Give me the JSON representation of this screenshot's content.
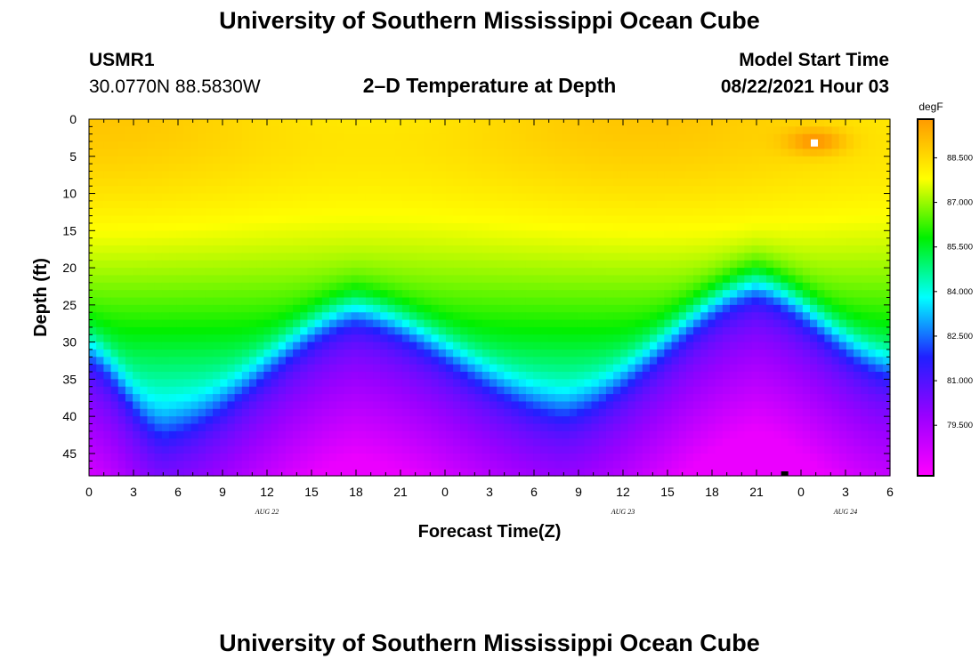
{
  "header": {
    "title": "University of Southern Mississippi Ocean Cube",
    "station": "USMR1",
    "coordinates": "30.0770N  88.5830W",
    "subtitle": "2–D Temperature at Depth",
    "model_start_label": "Model Start Time",
    "model_start_time": "08/22/2021 Hour 03"
  },
  "footer": {
    "title": "University of Southern Mississippi Ocean Cube"
  },
  "chart_data": {
    "type": "heatmap",
    "title": "2–D Temperature at Depth",
    "xlabel": "Forecast Time(Z)",
    "ylabel": "Depth (ft)",
    "x_range": [
      0,
      54
    ],
    "ylim": [
      0,
      48
    ],
    "x_ticks": [
      "0",
      "3",
      "6",
      "9",
      "12",
      "15",
      "18",
      "21",
      "0",
      "3",
      "6",
      "9",
      "12",
      "15",
      "18",
      "21",
      "0",
      "3",
      "6"
    ],
    "x_tick_hours": [
      0,
      3,
      6,
      9,
      12,
      15,
      18,
      21,
      24,
      27,
      30,
      33,
      36,
      39,
      42,
      45,
      48,
      51,
      54
    ],
    "y_ticks": [
      0,
      5,
      10,
      15,
      20,
      25,
      30,
      35,
      40,
      45
    ],
    "date_labels": [
      {
        "text": "AUG  22",
        "hour": 12
      },
      {
        "text": "AUG  23",
        "hour": 36
      },
      {
        "text": "AUG  24",
        "hour": 51
      }
    ],
    "colorbar": {
      "unit": "degF",
      "min": 77.8,
      "max": 89.8,
      "labels": [
        "88.500",
        "87.000",
        "85.500",
        "84.000",
        "82.500",
        "81.000",
        "79.500"
      ],
      "label_values": [
        88.5,
        87.0,
        85.5,
        84.0,
        82.5,
        81.0,
        79.5
      ],
      "colors": [
        "#ff00ff",
        "#9a00ff",
        "#2020ff",
        "#00ffff",
        "#00f000",
        "#ffff00",
        "#ff9a00"
      ]
    },
    "thermocline_depth_ft": [
      {
        "hour": 0,
        "depth": 31
      },
      {
        "hour": 5,
        "depth": 42
      },
      {
        "hour": 18,
        "depth": 25.5
      },
      {
        "hour": 32,
        "depth": 39
      },
      {
        "hour": 45,
        "depth": 22
      },
      {
        "hour": 54,
        "depth": 33
      }
    ],
    "surface_max_degF": 89.8
  }
}
